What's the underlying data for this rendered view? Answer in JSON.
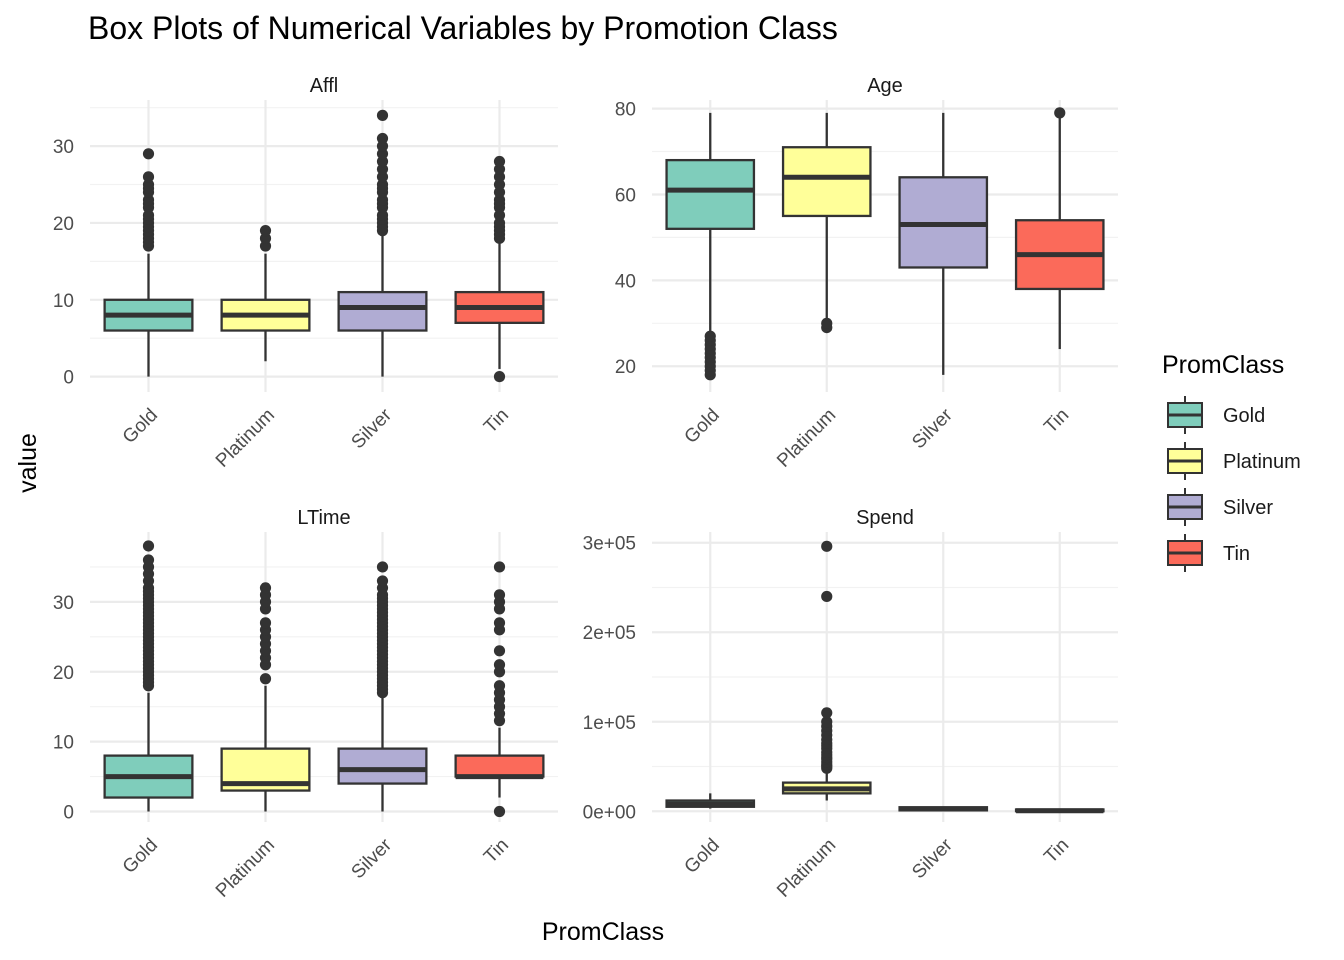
{
  "chart_data": {
    "type": "box",
    "title": "Box Plots of Numerical Variables by Promotion Class",
    "xlabel": "PromClass",
    "ylabel": "value",
    "categories": [
      "Gold",
      "Platinum",
      "Silver",
      "Tin"
    ],
    "legend": {
      "title": "PromClass",
      "placement": "right",
      "items": [
        {
          "name": "Gold",
          "color": "#7FCDBB"
        },
        {
          "name": "Platinum",
          "color": "#FFFF99"
        },
        {
          "name": "Silver",
          "color": "#B0ACD3"
        },
        {
          "name": "Tin",
          "color": "#FB6A5A"
        }
      ]
    },
    "panels": [
      {
        "name": "Affl",
        "ylim": [
          -2,
          36
        ],
        "yticks": [
          0,
          10,
          20,
          30
        ],
        "ytick_labels": [
          "0",
          "10",
          "20",
          "30"
        ],
        "minor_ticks": [
          5,
          15,
          25,
          35
        ],
        "boxes": [
          {
            "category": "Gold",
            "min": 0,
            "q1": 6,
            "median": 8,
            "q3": 10,
            "max": 16,
            "outliers": [
              17,
              17.5,
              18,
              18.5,
              19,
              19.5,
              20,
              20.5,
              21,
              22,
              22.5,
              23,
              24,
              24.5,
              25,
              26,
              29
            ]
          },
          {
            "category": "Platinum",
            "min": 2,
            "q1": 6,
            "median": 8,
            "q3": 10,
            "max": 16,
            "outliers": [
              17,
              18,
              19
            ]
          },
          {
            "category": "Silver",
            "min": 0,
            "q1": 6,
            "median": 9,
            "q3": 11,
            "max": 18.5,
            "outliers": [
              19,
              19.5,
              20,
              20.5,
              21,
              22,
              22.5,
              23,
              24,
              24.5,
              25,
              26,
              27,
              28,
              29,
              30,
              31,
              34
            ]
          },
          {
            "category": "Tin",
            "min": 1,
            "q1": 7,
            "median": 9,
            "q3": 11,
            "max": 17.5,
            "outliers": [
              0,
              18,
              18.5,
              19,
              19.5,
              20,
              21,
              22,
              22.5,
              23,
              24,
              25,
              26,
              27,
              28
            ]
          }
        ]
      },
      {
        "name": "Age",
        "ylim": [
          14,
          82
        ],
        "yticks": [
          20,
          40,
          60,
          80
        ],
        "ytick_labels": [
          "20",
          "40",
          "60",
          "80"
        ],
        "minor_ticks": [
          30,
          50,
          70
        ],
        "boxes": [
          {
            "category": "Gold",
            "min": 28,
            "q1": 52,
            "median": 61,
            "q3": 68,
            "max": 79,
            "outliers": [
              18,
              19,
              20,
              21,
              22,
              23,
              24,
              25,
              26,
              27
            ]
          },
          {
            "category": "Platinum",
            "min": 31,
            "q1": 55,
            "median": 64,
            "q3": 71,
            "max": 79,
            "outliers": [
              29,
              30
            ]
          },
          {
            "category": "Silver",
            "min": 18,
            "q1": 43,
            "median": 53,
            "q3": 64,
            "max": 79,
            "outliers": []
          },
          {
            "category": "Tin",
            "min": 24,
            "q1": 38,
            "median": 46,
            "q3": 54,
            "max": 78,
            "outliers": [
              79
            ]
          }
        ]
      },
      {
        "name": "LTime",
        "ylim": [
          -1.5,
          40
        ],
        "yticks": [
          0,
          10,
          20,
          30
        ],
        "ytick_labels": [
          "0",
          "10",
          "20",
          "30"
        ],
        "minor_ticks": [
          5,
          15,
          25,
          35
        ],
        "boxes": [
          {
            "category": "Gold",
            "min": 0,
            "q1": 2,
            "median": 5,
            "q3": 8,
            "max": 17,
            "outliers": [
              18,
              18.5,
              19,
              19.5,
              20,
              20.5,
              21,
              21.5,
              22,
              22.5,
              23,
              23.5,
              24,
              24.5,
              25,
              25.5,
              26,
              26.5,
              27,
              27.5,
              28,
              28.5,
              29,
              29.5,
              30,
              30.5,
              31,
              31.5,
              32,
              33,
              34,
              35,
              36,
              38
            ]
          },
          {
            "category": "Platinum",
            "min": 0,
            "q1": 3,
            "median": 4,
            "q3": 9,
            "max": 18,
            "outliers": [
              19,
              21,
              22,
              23,
              24,
              25,
              26,
              27,
              29,
              30,
              31,
              32
            ]
          },
          {
            "category": "Silver",
            "min": 0,
            "q1": 4,
            "median": 6,
            "q3": 9,
            "max": 16.5,
            "outliers": [
              17,
              17.5,
              18,
              18.5,
              19,
              19.5,
              20,
              20.5,
              21,
              21.5,
              22,
              22.5,
              23,
              23.5,
              24,
              24.5,
              25,
              25.5,
              26,
              26.5,
              27,
              27.5,
              28,
              28.5,
              29,
              29.5,
              30,
              30.5,
              31,
              32,
              33,
              35
            ]
          },
          {
            "category": "Tin",
            "min": 2,
            "q1": 5,
            "median": 5,
            "q3": 8,
            "max": 12,
            "outliers": [
              0,
              13,
              14,
              15,
              16,
              17,
              18,
              20,
              21,
              23,
              26,
              27,
              29,
              30,
              31,
              35
            ]
          }
        ]
      },
      {
        "name": "Spend",
        "ylim": [
          -12000,
          312000
        ],
        "yticks": [
          0,
          100000,
          200000,
          300000
        ],
        "ytick_labels": [
          "0e+00",
          "1e+05",
          "2e+05",
          "3e+05"
        ],
        "minor_ticks": [
          50000,
          150000,
          250000
        ],
        "boxes": [
          {
            "category": "Gold",
            "min": 3000,
            "q1": 5000,
            "median": 8000,
            "q3": 12000,
            "max": 20000,
            "outliers": []
          },
          {
            "category": "Platinum",
            "min": 12000,
            "q1": 20000,
            "median": 25000,
            "q3": 32000,
            "max": 46000,
            "outliers": [
              48000,
              50000,
              52000,
              55000,
              58000,
              60000,
              63000,
              66000,
              70000,
              73000,
              76000,
              80000,
              85000,
              90000,
              95000,
              100000,
              110000,
              240000,
              296000
            ]
          },
          {
            "category": "Silver",
            "min": 0,
            "q1": 1000,
            "median": 2500,
            "q3": 4500,
            "max": 5000,
            "outliers": []
          },
          {
            "category": "Tin",
            "min": 0,
            "q1": 0,
            "median": 500,
            "q3": 2000,
            "max": 2500,
            "outliers": []
          }
        ]
      }
    ]
  }
}
